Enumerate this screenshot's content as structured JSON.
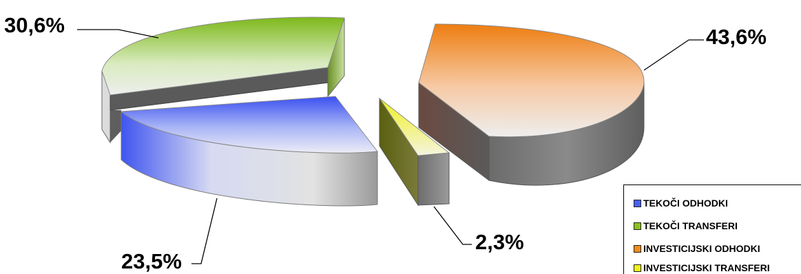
{
  "chart_data": {
    "type": "pie",
    "title": "",
    "categories": [
      "TEKOČI ODHODKI",
      "TEKOČI TRANSFERI",
      "INVESTICIJSKI ODHODKI",
      "INVESTICIJSKI TRANSFERI"
    ],
    "values": [
      23.5,
      30.6,
      43.6,
      2.3
    ],
    "data_labels": [
      "23,5%",
      "30,6%",
      "43,6%",
      "2,3%"
    ],
    "colors": [
      "#4a5ff0",
      "#8cc21e",
      "#f08c1c",
      "#f2f218"
    ],
    "three_d": true,
    "exploded": true,
    "legend_position": "bottom-right"
  }
}
